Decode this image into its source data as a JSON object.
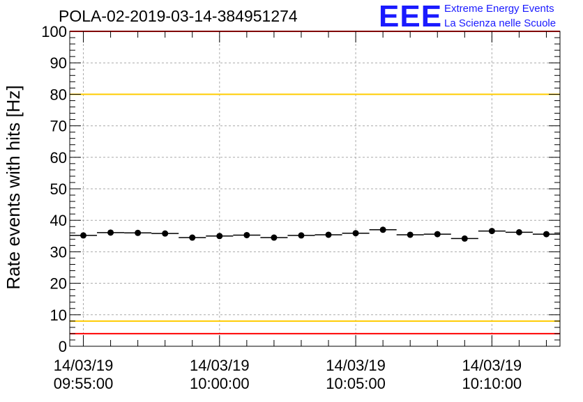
{
  "title": "POLA-02-2019-03-14-384951274",
  "logo": {
    "mark": "EEE",
    "line1": "Extreme Energy Events",
    "line2": "La Scienza nelle Scuole",
    "color": "#1a1aff"
  },
  "chart_data": {
    "type": "scatter",
    "title": "POLA-02-2019-03-14-384951274",
    "xlabel": "",
    "ylabel": "Rate events with hits [Hz]",
    "ylim": [
      0,
      100
    ],
    "xlim": [
      "09:54:30",
      "10:12:30"
    ],
    "grid": true,
    "y_ticks": [
      "0",
      "10",
      "20",
      "30",
      "40",
      "50",
      "60",
      "70",
      "80",
      "90",
      "100"
    ],
    "x_ticks": [
      {
        "time": "09:55:00",
        "line1": "14/03/19",
        "line2": "09:55:00"
      },
      {
        "time": "10:00:00",
        "line1": "14/03/19",
        "line2": "10:00:00"
      },
      {
        "time": "10:05:00",
        "line1": "14/03/19",
        "line2": "10:05:00"
      },
      {
        "time": "10:10:00",
        "line1": "14/03/19",
        "line2": "10:10:00"
      }
    ],
    "x_minor_step_seconds": 60,
    "bin_halfwidth_seconds": 30,
    "points": [
      {
        "time": "09:55:00",
        "rate": 35.2
      },
      {
        "time": "09:56:00",
        "rate": 36.1
      },
      {
        "time": "09:57:00",
        "rate": 36.0
      },
      {
        "time": "09:58:00",
        "rate": 35.8
      },
      {
        "time": "09:59:00",
        "rate": 34.5
      },
      {
        "time": "10:00:00",
        "rate": 35.0
      },
      {
        "time": "10:01:00",
        "rate": 35.3
      },
      {
        "time": "10:02:00",
        "rate": 34.5
      },
      {
        "time": "10:03:00",
        "rate": 35.2
      },
      {
        "time": "10:04:00",
        "rate": 35.4
      },
      {
        "time": "10:05:00",
        "rate": 35.9
      },
      {
        "time": "10:06:00",
        "rate": 37.0
      },
      {
        "time": "10:07:00",
        "rate": 35.4
      },
      {
        "time": "10:08:00",
        "rate": 35.6
      },
      {
        "time": "10:09:00",
        "rate": 34.2
      },
      {
        "time": "10:10:00",
        "rate": 36.6
      },
      {
        "time": "10:11:00",
        "rate": 36.2
      },
      {
        "time": "10:12:00",
        "rate": 35.6
      }
    ],
    "reference_lines": [
      {
        "y": 100,
        "color": "#ff0000"
      },
      {
        "y": 80,
        "color": "#ffcc00"
      },
      {
        "y": 8,
        "color": "#ffcc00"
      },
      {
        "y": 4,
        "color": "#ff0000"
      }
    ],
    "marker_color": "#000000"
  }
}
